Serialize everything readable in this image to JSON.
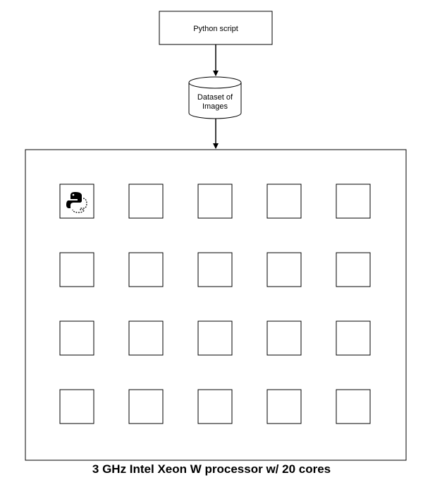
{
  "nodes": {
    "script_label": "Python script",
    "dataset_line1": "Dataset of",
    "dataset_line2": "Images"
  },
  "processor": {
    "caption": "3 GHz Intel Xeon W processor w/ 20 cores",
    "core_rows": 4,
    "core_cols": 5,
    "python_icon_core": 0
  },
  "icons": {
    "core_0": "python-logo-icon"
  },
  "colors": {
    "stroke": "#000000",
    "background": "#ffffff"
  }
}
